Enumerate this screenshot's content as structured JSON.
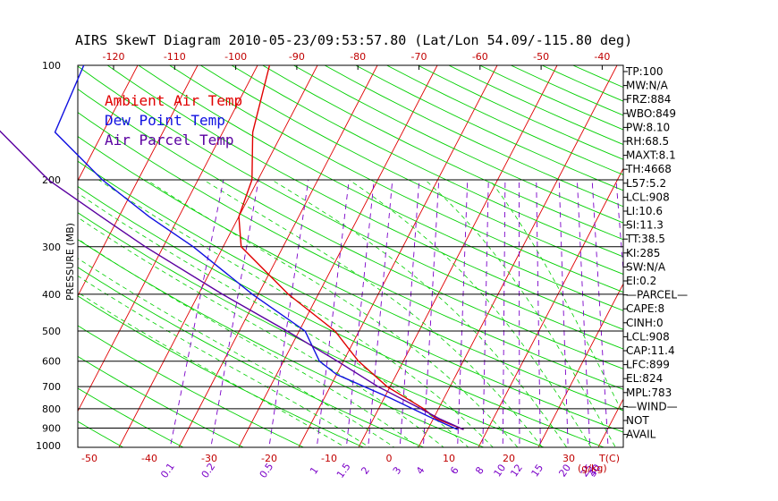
{
  "title": "AIRS SkewT Diagram 2010-05-23/09:53:57.80 (Lat/Lon 54.09/-115.80 deg)",
  "colors": {
    "ambient": "#e00000",
    "dewpoint": "#1010e0",
    "parcel": "#5a00a0",
    "isotherm": "#e00000",
    "dry_adiabat": "#00d000",
    "moist_adiabat": "#00d000",
    "mixing_ratio": "#7a00c8",
    "isobar": "#000000"
  },
  "legend": [
    {
      "label": "Ambient Air Temp",
      "color_key": "ambient"
    },
    {
      "label": "Dew Point Temp",
      "color_key": "dewpoint"
    },
    {
      "label": "Air Parcel Temp",
      "color_key": "parcel"
    }
  ],
  "indices": [
    "TP:100",
    "MW:N/A",
    "FRZ:884",
    "WBO:849",
    "PW:8.10",
    "RH:68.5",
    "MAXT:8.1",
    "TH:4668",
    "L57:5.2",
    "LCL:908",
    "LI:10.6",
    "SI:11.3",
    "TT:38.5",
    "KI:285",
    "SW:N/A",
    "EI:0.2",
    "—PARCEL—",
    "CAPE:8",
    "CINH:0",
    "LCL:908",
    "CAP:11.4",
    "LFC:899",
    "EL:824",
    "MPL:783",
    "—WIND—",
    "NOT",
    "AVAIL"
  ],
  "chart_data": {
    "type": "line",
    "title": "AIRS SkewT Diagram 2010-05-23/09:53:57.80 (Lat/Lon 54.09/-115.80 deg)",
    "xlabel": "T(C)",
    "ylabel": "PRESSURE (MB)",
    "x_scale": "skewed temperature",
    "y_scale": "log",
    "ylim": [
      1000,
      100
    ],
    "pressure_ticks": [
      100,
      200,
      300,
      400,
      500,
      600,
      700,
      800,
      900,
      1000
    ],
    "bottom_temp_ticks": [
      -50,
      -40,
      -30,
      -20,
      -10,
      0,
      10,
      20,
      30
    ],
    "top_temp_ticks": [
      -120,
      -110,
      -100,
      -90,
      -80,
      -70,
      -60,
      -50,
      -40
    ],
    "mixing_ratio_ticks": [
      "0.1",
      "0.2",
      "0.5",
      "1",
      "1.5",
      "2",
      "3",
      "4",
      "6",
      "8",
      "10",
      "12",
      "15",
      "20",
      "25",
      "30",
      "40"
    ],
    "mixing_ratio_unit": "(g/kg)",
    "grid": true,
    "legend_position": "top-left",
    "series": [
      {
        "name": "Ambient Air Temp",
        "color_key": "ambient",
        "points": [
          [
            908,
            6.0
          ],
          [
            850,
            0.5
          ],
          [
            800,
            -2.5
          ],
          [
            700,
            -10.5
          ],
          [
            600,
            -17.5
          ],
          [
            500,
            -24.0
          ],
          [
            400,
            -35.0
          ],
          [
            300,
            -47.0
          ],
          [
            250,
            -50.0
          ],
          [
            200,
            -51.0
          ],
          [
            150,
            -55.0
          ],
          [
            100,
            -58.0
          ]
        ]
      },
      {
        "name": "Dew Point Temp",
        "color_key": "dewpoint",
        "points": [
          [
            908,
            5.0
          ],
          [
            850,
            0.0
          ],
          [
            750,
            -9.0
          ],
          [
            650,
            -20.0
          ],
          [
            600,
            -24.0
          ],
          [
            500,
            -29.0
          ],
          [
            400,
            -41.0
          ],
          [
            300,
            -55.0
          ],
          [
            250,
            -65.0
          ],
          [
            200,
            -76.0
          ],
          [
            150,
            -88.0
          ],
          [
            100,
            -89.0
          ]
        ]
      },
      {
        "name": "Air Parcel Temp",
        "color_key": "parcel",
        "points": [
          [
            908,
            6.0
          ],
          [
            850,
            1.0
          ],
          [
            800,
            -3.0
          ],
          [
            700,
            -12.0
          ],
          [
            600,
            -21.0
          ],
          [
            500,
            -32.0
          ],
          [
            400,
            -46.0
          ],
          [
            300,
            -63.0
          ],
          [
            250,
            -73.0
          ],
          [
            200,
            -85.0
          ],
          [
            150,
            -97.0
          ],
          [
            100,
            -113.0
          ]
        ]
      }
    ]
  }
}
